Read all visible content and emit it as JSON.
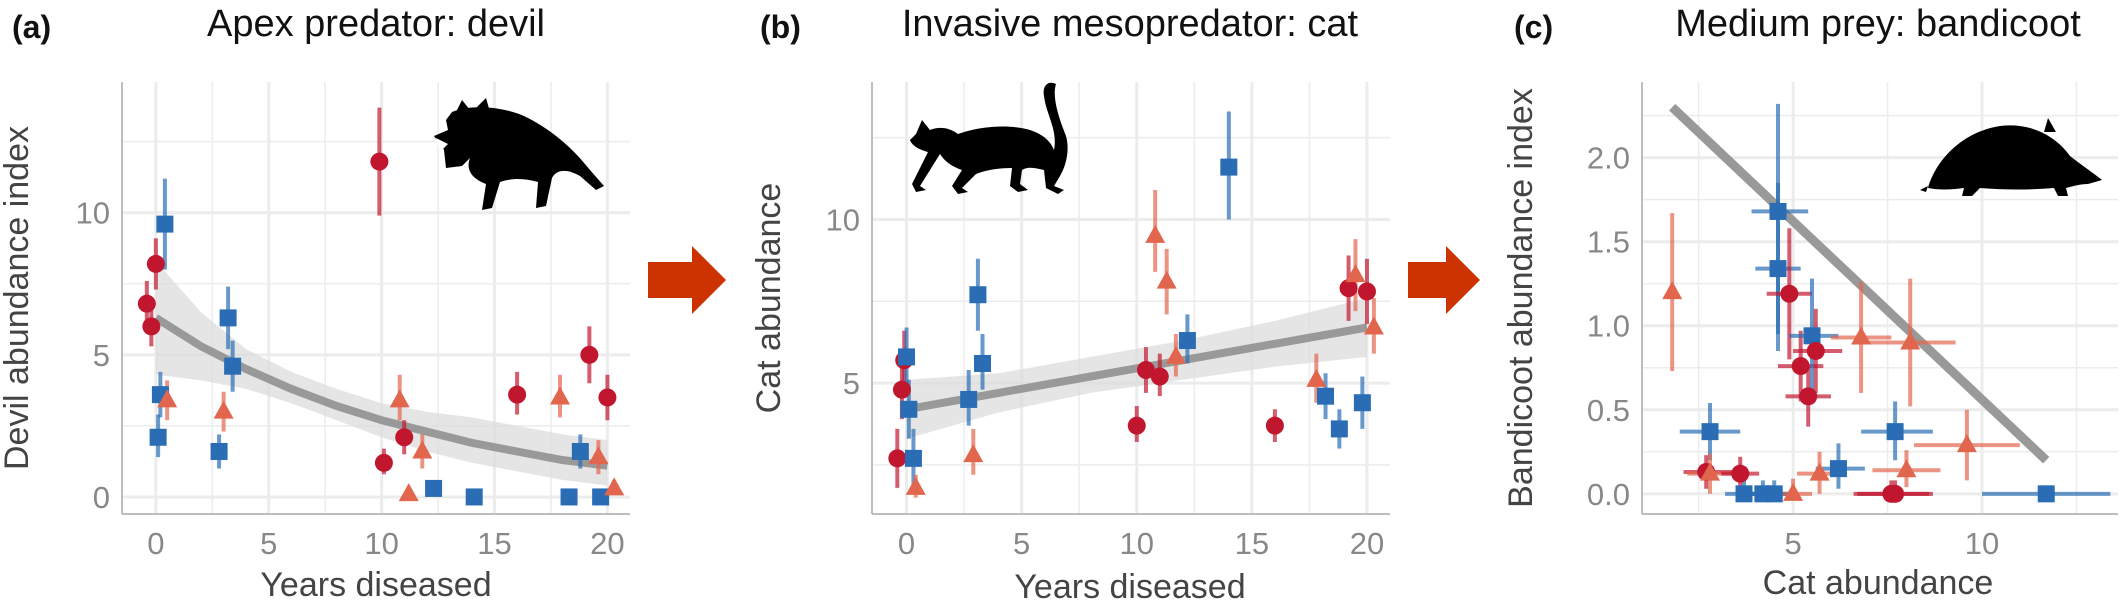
{
  "colors": {
    "red": "#c0172f",
    "orange": "#e2664e",
    "blue": "#2a6db5",
    "trend": "#999999",
    "ribbon": "#dcdcdc",
    "grid": "#ececec",
    "arrow": "#cc3300"
  },
  "connector_icons": [
    "arrow-right-icon",
    "arrow-right-icon"
  ],
  "chart_data": [
    {
      "tag": "(a)",
      "title": "Apex predator: devil",
      "type": "scatter",
      "silhouette_icon": "tasmanian-devil-icon",
      "xlabel": "Years diseased",
      "ylabel": "Devil abundance index",
      "xlim": [
        -1.5,
        21
      ],
      "ylim": [
        -0.6,
        14.6
      ],
      "xticks": [
        0,
        5,
        10,
        15,
        20
      ],
      "yticks": [
        0,
        5,
        10
      ],
      "grid": true,
      "points": [
        {
          "x": -0.4,
          "y": 6.8,
          "ylo": 6.0,
          "yhi": 7.6,
          "color": "red",
          "shape": "circle"
        },
        {
          "x": -0.2,
          "y": 6.0,
          "ylo": 5.3,
          "yhi": 6.8,
          "color": "red",
          "shape": "circle"
        },
        {
          "x": 0.0,
          "y": 8.2,
          "ylo": 7.3,
          "yhi": 9.1,
          "color": "red",
          "shape": "circle"
        },
        {
          "x": 0.1,
          "y": 2.1,
          "ylo": 1.4,
          "yhi": 2.9,
          "color": "blue",
          "shape": "square"
        },
        {
          "x": 0.2,
          "y": 3.6,
          "ylo": 2.8,
          "yhi": 4.4,
          "color": "blue",
          "shape": "square"
        },
        {
          "x": 0.4,
          "y": 9.6,
          "ylo": 8.0,
          "yhi": 11.2,
          "color": "blue",
          "shape": "square"
        },
        {
          "x": 0.5,
          "y": 3.4,
          "ylo": 2.7,
          "yhi": 4.1,
          "color": "orange",
          "shape": "triangle"
        },
        {
          "x": 2.8,
          "y": 1.6,
          "ylo": 1.0,
          "yhi": 2.2,
          "color": "blue",
          "shape": "square"
        },
        {
          "x": 3.0,
          "y": 3.0,
          "ylo": 2.3,
          "yhi": 3.7,
          "color": "orange",
          "shape": "triangle"
        },
        {
          "x": 3.2,
          "y": 6.3,
          "ylo": 5.2,
          "yhi": 7.4,
          "color": "blue",
          "shape": "square"
        },
        {
          "x": 3.4,
          "y": 4.6,
          "ylo": 3.7,
          "yhi": 5.5,
          "color": "blue",
          "shape": "square"
        },
        {
          "x": 9.9,
          "y": 11.8,
          "ylo": 9.9,
          "yhi": 13.7,
          "color": "red",
          "shape": "circle"
        },
        {
          "x": 10.1,
          "y": 1.2,
          "ylo": 0.8,
          "yhi": 1.7,
          "color": "red",
          "shape": "circle"
        },
        {
          "x": 10.8,
          "y": 3.4,
          "ylo": 2.7,
          "yhi": 4.3,
          "color": "orange",
          "shape": "triangle"
        },
        {
          "x": 11.0,
          "y": 2.1,
          "ylo": 1.5,
          "yhi": 2.7,
          "color": "red",
          "shape": "circle"
        },
        {
          "x": 11.2,
          "y": 0.1,
          "ylo": 0.0,
          "yhi": 0.3,
          "color": "orange",
          "shape": "triangle"
        },
        {
          "x": 11.8,
          "y": 1.6,
          "ylo": 1.0,
          "yhi": 2.2,
          "color": "orange",
          "shape": "triangle"
        },
        {
          "x": 12.3,
          "y": 0.3,
          "ylo": 0.1,
          "yhi": 0.5,
          "color": "blue",
          "shape": "square"
        },
        {
          "x": 14.1,
          "y": 0.0,
          "ylo": 0.0,
          "yhi": 0.1,
          "color": "blue",
          "shape": "square"
        },
        {
          "x": 16.0,
          "y": 3.6,
          "ylo": 2.9,
          "yhi": 4.4,
          "color": "red",
          "shape": "circle"
        },
        {
          "x": 17.9,
          "y": 3.5,
          "ylo": 2.8,
          "yhi": 4.3,
          "color": "orange",
          "shape": "triangle"
        },
        {
          "x": 18.3,
          "y": 0.0,
          "ylo": 0.0,
          "yhi": 0.1,
          "color": "blue",
          "shape": "square"
        },
        {
          "x": 18.8,
          "y": 1.6,
          "ylo": 1.0,
          "yhi": 2.2,
          "color": "blue",
          "shape": "square"
        },
        {
          "x": 19.2,
          "y": 5.0,
          "ylo": 4.0,
          "yhi": 6.0,
          "color": "red",
          "shape": "circle"
        },
        {
          "x": 19.6,
          "y": 1.4,
          "ylo": 0.8,
          "yhi": 2.0,
          "color": "orange",
          "shape": "triangle"
        },
        {
          "x": 19.7,
          "y": 0.0,
          "ylo": 0.0,
          "yhi": 0.1,
          "color": "blue",
          "shape": "square"
        },
        {
          "x": 20.0,
          "y": 3.5,
          "ylo": 2.7,
          "yhi": 4.3,
          "color": "red",
          "shape": "circle"
        },
        {
          "x": 20.3,
          "y": 0.3,
          "ylo": 0.1,
          "yhi": 0.6,
          "color": "orange",
          "shape": "triangle"
        }
      ],
      "trend": {
        "x": [
          0,
          2,
          4,
          6,
          8,
          10,
          12,
          14,
          16,
          18,
          20
        ],
        "y": [
          6.3,
          5.3,
          4.5,
          3.8,
          3.2,
          2.7,
          2.3,
          1.9,
          1.6,
          1.3,
          1.1
        ],
        "lo": [
          4.3,
          4.1,
          3.8,
          3.3,
          2.7,
          2.1,
          1.6,
          1.2,
          0.9,
          0.6,
          0.4
        ],
        "hi": [
          8.3,
          6.5,
          5.2,
          4.4,
          3.8,
          3.3,
          3.0,
          2.8,
          2.5,
          2.2,
          2.0
        ]
      }
    },
    {
      "tag": "(b)",
      "title": "Invasive mesopredator: cat",
      "type": "scatter",
      "silhouette_icon": "cat-icon",
      "xlabel": "Years diseased",
      "ylabel": "Cat abundance",
      "xlim": [
        -1.5,
        21
      ],
      "ylim": [
        1.0,
        14.2
      ],
      "xticks": [
        0,
        5,
        10,
        15,
        20
      ],
      "yticks": [
        5,
        10
      ],
      "grid": true,
      "points": [
        {
          "x": -0.4,
          "y": 2.7,
          "ylo": 1.8,
          "yhi": 3.6,
          "color": "red",
          "shape": "circle"
        },
        {
          "x": -0.2,
          "y": 4.8,
          "ylo": 3.9,
          "yhi": 5.7,
          "color": "red",
          "shape": "circle"
        },
        {
          "x": -0.1,
          "y": 5.7,
          "ylo": 4.8,
          "yhi": 6.6,
          "color": "red",
          "shape": "circle"
        },
        {
          "x": 0.0,
          "y": 5.8,
          "ylo": 4.9,
          "yhi": 6.7,
          "color": "blue",
          "shape": "square"
        },
        {
          "x": 0.1,
          "y": 4.2,
          "ylo": 3.3,
          "yhi": 5.1,
          "color": "blue",
          "shape": "square"
        },
        {
          "x": 0.3,
          "y": 2.7,
          "ylo": 1.8,
          "yhi": 3.6,
          "color": "blue",
          "shape": "square"
        },
        {
          "x": 0.4,
          "y": 1.8,
          "ylo": 1.5,
          "yhi": 2.2,
          "color": "orange",
          "shape": "triangle"
        },
        {
          "x": 2.7,
          "y": 4.5,
          "ylo": 3.7,
          "yhi": 5.4,
          "color": "blue",
          "shape": "square"
        },
        {
          "x": 2.9,
          "y": 2.8,
          "ylo": 2.2,
          "yhi": 3.6,
          "color": "orange",
          "shape": "triangle"
        },
        {
          "x": 3.1,
          "y": 7.7,
          "ylo": 6.6,
          "yhi": 8.8,
          "color": "blue",
          "shape": "square"
        },
        {
          "x": 3.3,
          "y": 5.6,
          "ylo": 4.8,
          "yhi": 6.5,
          "color": "blue",
          "shape": "square"
        },
        {
          "x": 10.0,
          "y": 3.7,
          "ylo": 3.2,
          "yhi": 4.3,
          "color": "red",
          "shape": "circle"
        },
        {
          "x": 10.4,
          "y": 5.4,
          "ylo": 4.7,
          "yhi": 6.1,
          "color": "red",
          "shape": "circle"
        },
        {
          "x": 10.8,
          "y": 9.5,
          "ylo": 8.4,
          "yhi": 10.9,
          "color": "orange",
          "shape": "triangle"
        },
        {
          "x": 11.0,
          "y": 5.2,
          "ylo": 4.6,
          "yhi": 5.9,
          "color": "red",
          "shape": "circle"
        },
        {
          "x": 11.3,
          "y": 8.1,
          "ylo": 7.1,
          "yhi": 9.1,
          "color": "orange",
          "shape": "triangle"
        },
        {
          "x": 11.7,
          "y": 5.8,
          "ylo": 5.2,
          "yhi": 6.5,
          "color": "orange",
          "shape": "triangle"
        },
        {
          "x": 12.2,
          "y": 6.3,
          "ylo": 5.6,
          "yhi": 7.1,
          "color": "blue",
          "shape": "square"
        },
        {
          "x": 14.0,
          "y": 11.6,
          "ylo": 10.0,
          "yhi": 13.3,
          "color": "blue",
          "shape": "square"
        },
        {
          "x": 16.0,
          "y": 3.7,
          "ylo": 3.2,
          "yhi": 4.2,
          "color": "red",
          "shape": "circle"
        },
        {
          "x": 17.8,
          "y": 5.1,
          "ylo": 4.4,
          "yhi": 5.9,
          "color": "orange",
          "shape": "triangle"
        },
        {
          "x": 18.2,
          "y": 4.6,
          "ylo": 3.9,
          "yhi": 5.3,
          "color": "blue",
          "shape": "square"
        },
        {
          "x": 18.8,
          "y": 3.6,
          "ylo": 3.0,
          "yhi": 4.2,
          "color": "blue",
          "shape": "square"
        },
        {
          "x": 19.2,
          "y": 7.9,
          "ylo": 6.9,
          "yhi": 8.9,
          "color": "red",
          "shape": "circle"
        },
        {
          "x": 19.5,
          "y": 8.3,
          "ylo": 7.2,
          "yhi": 9.4,
          "color": "orange",
          "shape": "triangle"
        },
        {
          "x": 19.8,
          "y": 4.4,
          "ylo": 3.6,
          "yhi": 5.2,
          "color": "blue",
          "shape": "square"
        },
        {
          "x": 20.0,
          "y": 7.8,
          "ylo": 6.8,
          "yhi": 8.8,
          "color": "red",
          "shape": "circle"
        },
        {
          "x": 20.3,
          "y": 6.7,
          "ylo": 5.9,
          "yhi": 7.6,
          "color": "orange",
          "shape": "triangle"
        }
      ],
      "trend": {
        "x": [
          0,
          4,
          8,
          12,
          16,
          20
        ],
        "y": [
          4.2,
          4.7,
          5.2,
          5.7,
          6.2,
          6.7
        ],
        "lo": [
          3.3,
          4.1,
          4.7,
          5.1,
          5.5,
          5.8
        ],
        "hi": [
          5.1,
          5.3,
          5.8,
          6.3,
          6.9,
          7.6
        ]
      }
    },
    {
      "tag": "(c)",
      "title": "Medium prey: bandicoot",
      "type": "scatter",
      "silhouette_icon": "bandicoot-icon",
      "xlabel": "Cat abundance",
      "ylabel": "Bandicoot abundance index",
      "xlim": [
        1.0,
        13.6
      ],
      "ylim": [
        -0.12,
        2.45
      ],
      "xticks": [
        5,
        10
      ],
      "yticks": [
        0.0,
        0.5,
        1.0,
        1.5,
        2.0
      ],
      "ytick_labels": [
        "0.0",
        "0.5",
        "1.0",
        "1.5",
        "2.0"
      ],
      "grid": true,
      "points": [
        {
          "x": 1.8,
          "y": 1.2,
          "ylo": 0.73,
          "yhi": 1.67,
          "color": "orange",
          "shape": "triangle"
        },
        {
          "x": 2.7,
          "y": 0.13,
          "ylo": 0.03,
          "yhi": 0.23,
          "xlo": 2.1,
          "xhi": 3.4,
          "color": "red",
          "shape": "circle"
        },
        {
          "x": 2.8,
          "y": 0.37,
          "ylo": 0.2,
          "yhi": 0.54,
          "xlo": 2.0,
          "xhi": 3.6,
          "color": "blue",
          "shape": "square"
        },
        {
          "x": 2.8,
          "y": 0.12,
          "ylo": 0.0,
          "yhi": 0.24,
          "xlo": 2.2,
          "xhi": 3.4,
          "color": "orange",
          "shape": "triangle"
        },
        {
          "x": 3.6,
          "y": 0.12,
          "ylo": 0.02,
          "yhi": 0.22,
          "xlo": 3.1,
          "xhi": 4.1,
          "color": "red",
          "shape": "circle"
        },
        {
          "x": 3.7,
          "y": 0.0,
          "ylo": 0.0,
          "yhi": 0.08,
          "xlo": 3.2,
          "xhi": 4.3,
          "color": "blue",
          "shape": "square"
        },
        {
          "x": 4.2,
          "y": 0.0,
          "ylo": 0.0,
          "yhi": 0.08,
          "xlo": 3.6,
          "xhi": 4.9,
          "color": "blue",
          "shape": "square"
        },
        {
          "x": 4.5,
          "y": 0.0,
          "ylo": 0.0,
          "yhi": 0.08,
          "xlo": 3.9,
          "xhi": 5.1,
          "color": "blue",
          "shape": "square"
        },
        {
          "x": 4.6,
          "y": 1.68,
          "ylo": 0.95,
          "yhi": 2.32,
          "xlo": 3.9,
          "xhi": 5.4,
          "color": "blue",
          "shape": "square"
        },
        {
          "x": 4.6,
          "y": 1.34,
          "ylo": 0.85,
          "yhi": 1.85,
          "xlo": 4.0,
          "xhi": 5.2,
          "color": "blue",
          "shape": "square"
        },
        {
          "x": 4.9,
          "y": 1.19,
          "ylo": 0.8,
          "yhi": 1.58,
          "xlo": 4.3,
          "xhi": 5.5,
          "color": "red",
          "shape": "circle"
        },
        {
          "x": 5.0,
          "y": 0.0,
          "ylo": 0.0,
          "yhi": 0.09,
          "xlo": 4.4,
          "xhi": 5.5,
          "color": "orange",
          "shape": "triangle"
        },
        {
          "x": 5.2,
          "y": 0.76,
          "ylo": 0.55,
          "yhi": 0.97,
          "xlo": 4.6,
          "xhi": 5.8,
          "color": "red",
          "shape": "circle"
        },
        {
          "x": 5.4,
          "y": 0.58,
          "ylo": 0.4,
          "yhi": 0.76,
          "xlo": 4.8,
          "xhi": 6.0,
          "color": "red",
          "shape": "circle"
        },
        {
          "x": 5.5,
          "y": 0.94,
          "ylo": 0.6,
          "yhi": 1.28,
          "xlo": 4.9,
          "xhi": 6.2,
          "color": "blue",
          "shape": "square"
        },
        {
          "x": 5.6,
          "y": 0.85,
          "ylo": 0.6,
          "yhi": 1.1,
          "xlo": 5.0,
          "xhi": 6.3,
          "color": "red",
          "shape": "circle"
        },
        {
          "x": 5.7,
          "y": 0.12,
          "ylo": 0.0,
          "yhi": 0.25,
          "xlo": 5.1,
          "xhi": 6.4,
          "color": "orange",
          "shape": "triangle"
        },
        {
          "x": 6.2,
          "y": 0.15,
          "ylo": 0.03,
          "yhi": 0.3,
          "xlo": 5.6,
          "xhi": 6.9,
          "color": "blue",
          "shape": "square"
        },
        {
          "x": 6.8,
          "y": 0.93,
          "ylo": 0.6,
          "yhi": 1.26,
          "xlo": 6.0,
          "xhi": 7.6,
          "color": "orange",
          "shape": "triangle"
        },
        {
          "x": 7.6,
          "y": 0.0,
          "ylo": 0.0,
          "yhi": 0.08,
          "xlo": 6.6,
          "xhi": 8.6,
          "color": "red",
          "shape": "circle"
        },
        {
          "x": 7.7,
          "y": 0.0,
          "ylo": 0.0,
          "yhi": 0.08,
          "xlo": 6.7,
          "xhi": 8.7,
          "color": "red",
          "shape": "circle"
        },
        {
          "x": 7.7,
          "y": 0.37,
          "ylo": 0.2,
          "yhi": 0.55,
          "xlo": 6.8,
          "xhi": 8.7,
          "color": "blue",
          "shape": "square"
        },
        {
          "x": 8.0,
          "y": 0.14,
          "ylo": 0.04,
          "yhi": 0.26,
          "xlo": 7.1,
          "xhi": 8.9,
          "color": "orange",
          "shape": "triangle"
        },
        {
          "x": 8.1,
          "y": 0.9,
          "ylo": 0.52,
          "yhi": 1.28,
          "xlo": 7.0,
          "xhi": 9.3,
          "color": "orange",
          "shape": "triangle"
        },
        {
          "x": 9.6,
          "y": 0.29,
          "ylo": 0.08,
          "yhi": 0.5,
          "xlo": 8.2,
          "xhi": 11.0,
          "color": "orange",
          "shape": "triangle"
        },
        {
          "x": 11.7,
          "y": 0.0,
          "ylo": 0.0,
          "yhi": 0.04,
          "xlo": 10.0,
          "xhi": 13.4,
          "color": "blue",
          "shape": "square"
        }
      ],
      "trend": {
        "x": [
          1.8,
          11.7
        ],
        "y": [
          2.3,
          0.2
        ],
        "lo": [],
        "hi": []
      }
    }
  ]
}
